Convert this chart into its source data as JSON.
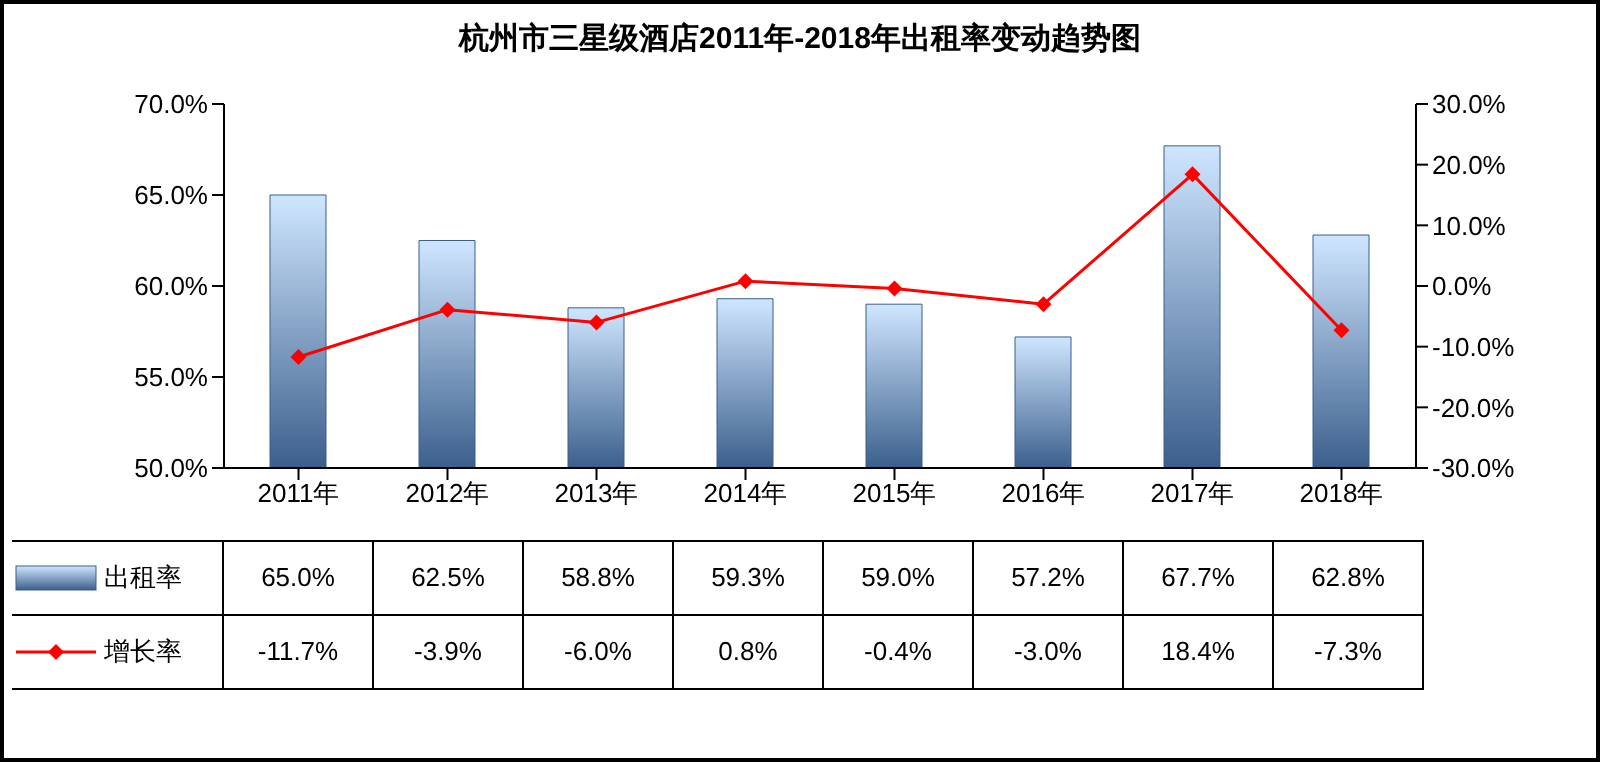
{
  "chart_data": {
    "type": "bar",
    "title": "杭州市三星级酒店2011年-2018年出租率变动趋势图",
    "categories": [
      "2011年",
      "2012年",
      "2013年",
      "2014年",
      "2015年",
      "2016年",
      "2017年",
      "2018年"
    ],
    "series": [
      {
        "name": "出租率",
        "color": "#3b5f8c",
        "values": [
          65.0,
          62.5,
          58.8,
          59.3,
          59.0,
          57.2,
          67.7,
          62.8
        ],
        "value_labels": [
          "65.0%",
          "62.5%",
          "58.8%",
          "59.3%",
          "59.0%",
          "57.2%",
          "67.7%",
          "62.8%"
        ]
      },
      {
        "name": "增长率",
        "type": "line",
        "axis": "y2",
        "color": "#ff0000",
        "marker": "diamond",
        "values": [
          -11.7,
          -3.9,
          -6.0,
          0.8,
          -0.4,
          -3.0,
          18.4,
          -7.3
        ],
        "value_labels": [
          "-11.7%",
          "-3.9%",
          "-6.0%",
          "0.8%",
          "-0.4%",
          "-3.0%",
          "18.4%",
          "-7.3%"
        ]
      }
    ],
    "ylim": [
      50,
      70
    ],
    "yticks": [
      {
        "value": 50,
        "label": "50.0%"
      },
      {
        "value": 55,
        "label": "55.0%"
      },
      {
        "value": 60,
        "label": "60.0%"
      },
      {
        "value": 65,
        "label": "65.0%"
      },
      {
        "value": 70,
        "label": "70.0%"
      }
    ],
    "y2lim": [
      -30,
      30
    ],
    "y2ticks": [
      {
        "value": -30,
        "label": "-30.0%"
      },
      {
        "value": -20,
        "label": "-20.0%"
      },
      {
        "value": -10,
        "label": "-10.0%"
      },
      {
        "value": 0,
        "label": "0.0%"
      },
      {
        "value": 10,
        "label": "10.0%"
      },
      {
        "value": 20,
        "label": "20.0%"
      },
      {
        "value": 30,
        "label": "30.0%"
      }
    ],
    "grid": false,
    "legend": "bottom left"
  }
}
